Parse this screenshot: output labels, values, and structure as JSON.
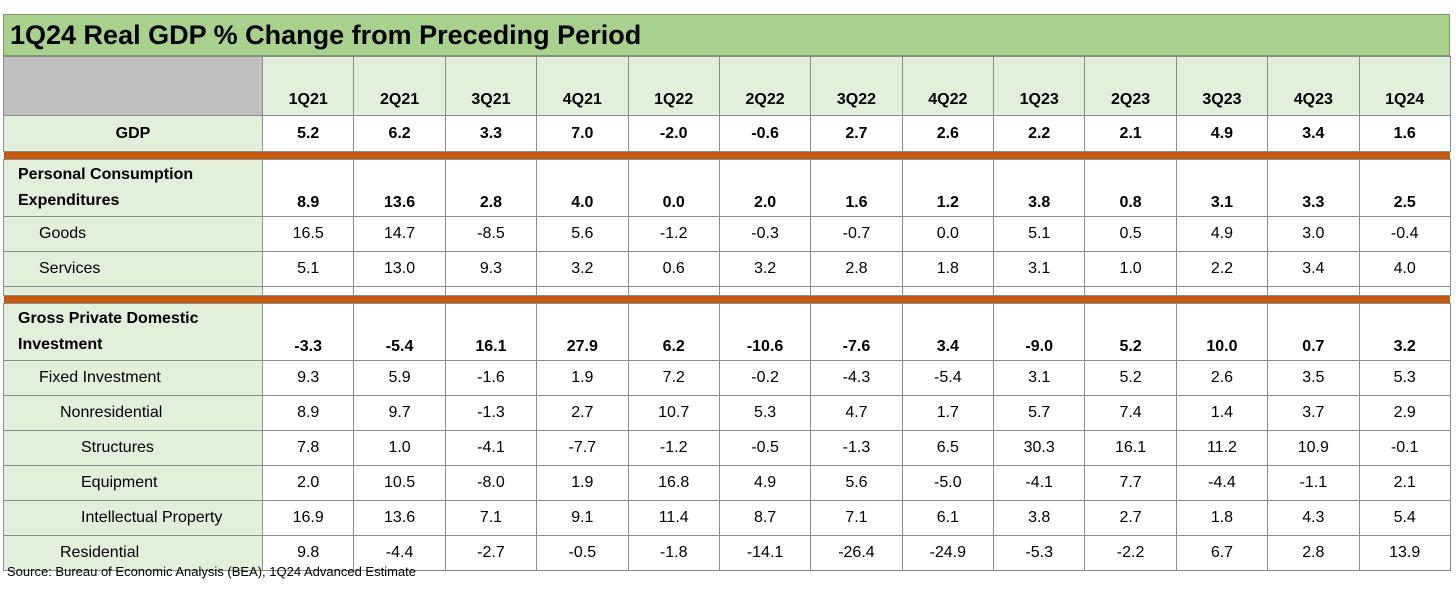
{
  "title": "1Q24 Real GDP % Change from Preceding Period",
  "quarters": [
    "1Q21",
    "2Q21",
    "3Q21",
    "4Q21",
    "1Q22",
    "2Q22",
    "3Q22",
    "4Q22",
    "1Q23",
    "2Q23",
    "3Q23",
    "4Q23",
    "1Q24"
  ],
  "rows": {
    "gdp": {
      "label": "GDP",
      "values": [
        "5.2",
        "6.2",
        "3.3",
        "7.0",
        "-2.0",
        "-0.6",
        "2.7",
        "2.6",
        "2.2",
        "2.1",
        "4.9",
        "3.4",
        "1.6"
      ]
    },
    "pce": {
      "label_line1": "Personal Consumption",
      "label_line2": "Expenditures",
      "values": [
        "8.9",
        "13.6",
        "2.8",
        "4.0",
        "0.0",
        "2.0",
        "1.6",
        "1.2",
        "3.8",
        "0.8",
        "3.1",
        "3.3",
        "2.5"
      ]
    },
    "goods": {
      "label": "Goods",
      "values": [
        "16.5",
        "14.7",
        "-8.5",
        "5.6",
        "-1.2",
        "-0.3",
        "-0.7",
        "0.0",
        "5.1",
        "0.5",
        "4.9",
        "3.0",
        "-0.4"
      ]
    },
    "services": {
      "label": "Services",
      "values": [
        "5.1",
        "13.0",
        "9.3",
        "3.2",
        "0.6",
        "3.2",
        "2.8",
        "1.8",
        "3.1",
        "1.0",
        "2.2",
        "3.4",
        "4.0"
      ]
    },
    "gpdi": {
      "label_line1": "Gross Private Domestic",
      "label_line2": "Investment",
      "values": [
        "-3.3",
        "-5.4",
        "16.1",
        "27.9",
        "6.2",
        "-10.6",
        "-7.6",
        "3.4",
        "-9.0",
        "5.2",
        "10.0",
        "0.7",
        "3.2"
      ]
    },
    "fixed": {
      "label": "Fixed Investment",
      "values": [
        "9.3",
        "5.9",
        "-1.6",
        "1.9",
        "7.2",
        "-0.2",
        "-4.3",
        "-5.4",
        "3.1",
        "5.2",
        "2.6",
        "3.5",
        "5.3"
      ]
    },
    "nonres": {
      "label": "Nonresidential",
      "values": [
        "8.9",
        "9.7",
        "-1.3",
        "2.7",
        "10.7",
        "5.3",
        "4.7",
        "1.7",
        "5.7",
        "7.4",
        "1.4",
        "3.7",
        "2.9"
      ]
    },
    "structures": {
      "label": "Structures",
      "values": [
        "7.8",
        "1.0",
        "-4.1",
        "-7.7",
        "-1.2",
        "-0.5",
        "-1.3",
        "6.5",
        "30.3",
        "16.1",
        "11.2",
        "10.9",
        "-0.1"
      ]
    },
    "equipment": {
      "label": "Equipment",
      "values": [
        "2.0",
        "10.5",
        "-8.0",
        "1.9",
        "16.8",
        "4.9",
        "5.6",
        "-5.0",
        "-4.1",
        "7.7",
        "-4.4",
        "-1.1",
        "2.1"
      ]
    },
    "ip": {
      "label": "Intellectual Property",
      "values": [
        "16.9",
        "13.6",
        "7.1",
        "9.1",
        "11.4",
        "8.7",
        "7.1",
        "6.1",
        "3.8",
        "2.7",
        "1.8",
        "4.3",
        "5.4"
      ]
    },
    "residential": {
      "label": "Residential",
      "values": [
        "9.8",
        "-4.4",
        "-2.7",
        "-0.5",
        "-1.8",
        "-14.1",
        "-26.4",
        "-24.9",
        "-5.3",
        "-2.2",
        "6.7",
        "2.8",
        "13.9"
      ]
    }
  },
  "source": "Source: Bureau of Economic Analysis (BEA), 1Q24 Advanced Estimate",
  "colors": {
    "title_bg": "#a9d18e",
    "header_bg": "#e2efda",
    "corner_bg": "#bfbfbf",
    "separator": "#c55a11"
  }
}
